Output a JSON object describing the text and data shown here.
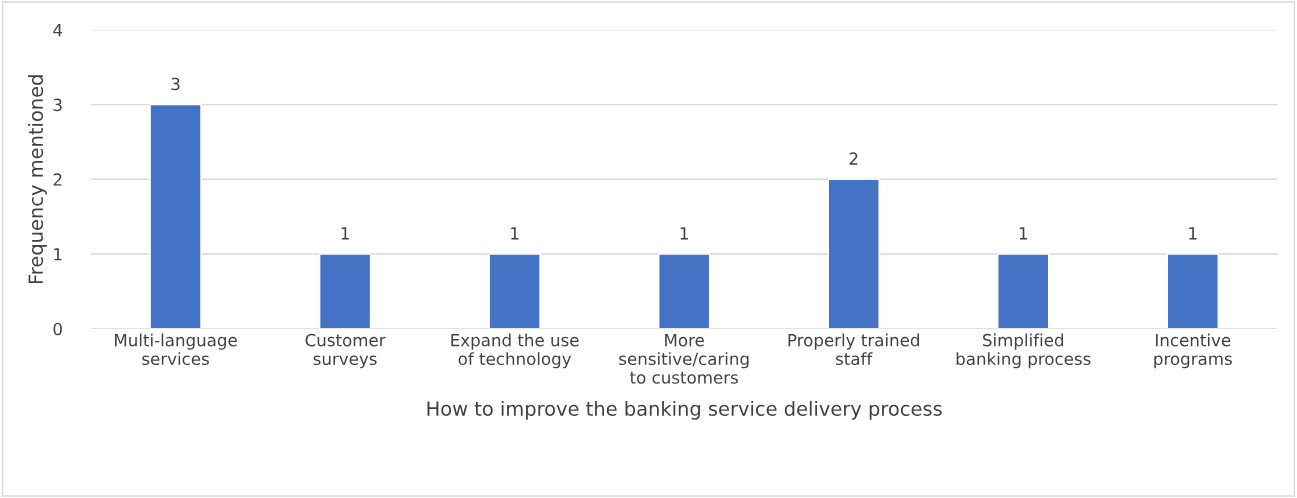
{
  "chart_data": {
    "type": "bar",
    "categories": [
      "Multi-language\nservices",
      "Customer\nsurveys",
      "Expand the use\nof technology",
      "More\nsensitive/caring\nto customers",
      "Properly trained\nstaff",
      "Simplified\nbanking process",
      "Incentive\nprograms"
    ],
    "values": [
      3,
      1,
      1,
      1,
      2,
      1,
      1
    ],
    "color": "#4472c4",
    "xlabel": "How to improve the banking service delivery process",
    "ylabel": "Frequency mentioned",
    "ylim": [
      0,
      4
    ],
    "yticks": [
      0,
      1,
      2,
      3,
      4
    ],
    "grid": "y",
    "data_labels": true,
    "legend": false
  }
}
